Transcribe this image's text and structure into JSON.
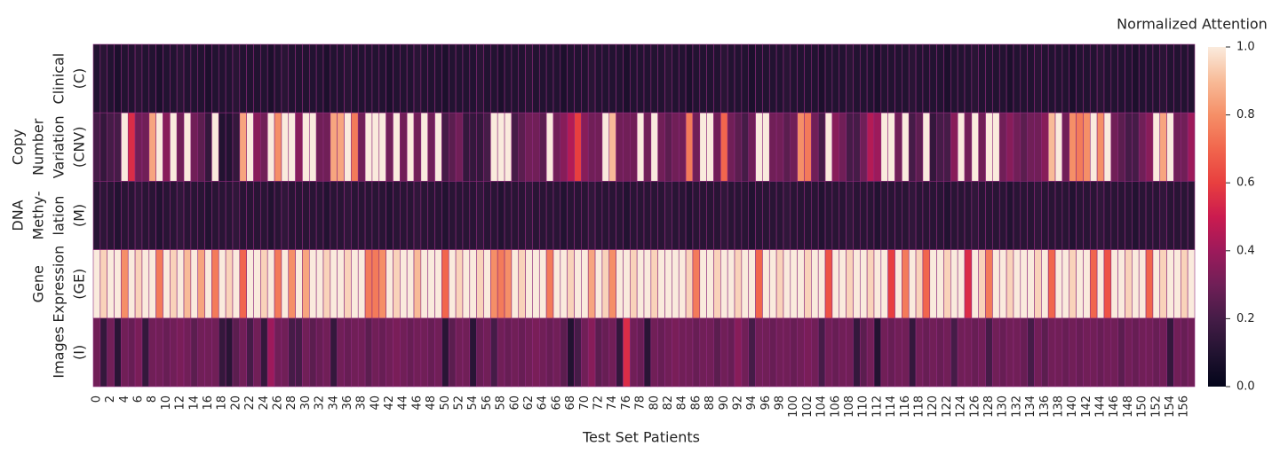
{
  "chart_data": {
    "type": "heatmap",
    "colorbar_label": "Normalized Attention",
    "x_label": "Test Set Patients",
    "colormap": "rocket",
    "linecolor": "#8e2a7c",
    "categories": [
      "0",
      null,
      "2",
      null,
      "4",
      null,
      "6",
      null,
      "8",
      null,
      "10",
      null,
      "12",
      null,
      "14",
      null,
      "16",
      null,
      "18",
      null,
      "20",
      null,
      "22",
      null,
      "24",
      null,
      "26",
      null,
      "28",
      null,
      "30",
      null,
      "32",
      null,
      "34",
      null,
      "36",
      null,
      "38",
      null,
      "40",
      null,
      "42",
      null,
      "44",
      null,
      "46",
      null,
      "48",
      null,
      "50",
      null,
      "52",
      null,
      "54",
      null,
      "56",
      null,
      "58",
      null,
      "60",
      null,
      "62",
      null,
      "64",
      null,
      "66",
      null,
      "68",
      null,
      "70",
      null,
      "72",
      null,
      "74",
      null,
      "76",
      null,
      "78",
      null,
      "80",
      null,
      "82",
      null,
      "84",
      null,
      "86",
      null,
      "88",
      null,
      "90",
      null,
      "92",
      null,
      "94",
      null,
      "96",
      null,
      "98",
      null,
      "100",
      null,
      "102",
      null,
      "104",
      null,
      "106",
      null,
      "108",
      null,
      "110",
      null,
      "112",
      null,
      "114",
      null,
      "116",
      null,
      "118",
      null,
      "120",
      null,
      "122",
      null,
      "124",
      null,
      "126",
      null,
      "128",
      null,
      "130",
      null,
      "132",
      null,
      "134",
      null,
      "136",
      null,
      "138",
      null,
      "140",
      null,
      "142",
      null,
      "144",
      null,
      "146",
      null,
      "148",
      null,
      "150",
      null,
      "152",
      null,
      "154",
      null,
      "156",
      null
    ],
    "y_categories": [
      [
        "Clinical",
        "(C)"
      ],
      [
        "Copy",
        "Number",
        "Variation",
        "(CNV)"
      ],
      [
        "DNA",
        "Methy-",
        "lation",
        "(M)"
      ],
      [
        "Gene",
        "Expression",
        "(GE)"
      ],
      [
        "Images",
        "(I)"
      ]
    ],
    "z": [
      [
        0.1,
        0.12,
        0.1,
        0.08,
        0.1,
        0.1,
        0.12,
        0.1,
        0.1,
        0.08,
        0.1,
        0.1,
        0.12,
        0.1,
        0.1,
        0.1,
        0.08,
        0.1,
        0.1,
        0.1,
        0.12,
        0.1,
        0.1,
        0.1,
        0.1,
        0.08,
        0.1,
        0.12,
        0.1,
        0.1,
        0.1,
        0.1,
        0.1,
        0.08,
        0.1,
        0.1,
        0.12,
        0.1,
        0.1,
        0.1,
        0.1,
        0.1,
        0.08,
        0.1,
        0.1,
        0.1,
        0.12,
        0.1,
        0.1,
        0.1,
        0.08,
        0.1,
        0.1,
        0.1,
        0.1,
        0.12,
        0.1,
        0.1,
        0.08,
        0.1,
        0.1,
        0.1,
        0.12,
        0.1,
        0.1,
        0.1,
        0.1,
        0.08,
        0.1,
        0.1,
        0.1,
        0.12,
        0.1,
        0.1,
        0.1,
        0.1,
        0.08,
        0.1,
        0.1,
        0.1,
        0.1,
        0.1,
        0.12,
        0.1,
        0.1,
        0.08,
        0.1,
        0.1,
        0.1,
        0.1,
        0.12,
        0.1,
        0.1,
        0.1,
        0.08,
        0.1,
        0.1,
        0.1,
        0.1,
        0.12,
        0.1,
        0.1,
        0.1,
        0.1,
        0.08,
        0.1,
        0.1,
        0.1,
        0.12,
        0.1,
        0.1,
        0.1,
        0.08,
        0.1,
        0.1,
        0.1,
        0.1,
        0.12,
        0.1,
        0.1,
        0.1,
        0.1,
        0.08,
        0.1,
        0.1,
        0.1,
        0.12,
        0.1,
        0.1,
        0.1,
        0.1,
        0.08,
        0.1,
        0.1,
        0.1,
        0.12,
        0.1,
        0.1,
        0.1,
        0.1,
        0.08,
        0.1,
        0.1,
        0.1,
        0.12,
        0.1,
        0.1,
        0.1,
        0.1,
        0.08,
        0.1,
        0.1,
        0.1,
        0.12,
        0.1,
        0.1,
        0.1,
        0.1
      ],
      [
        0.2,
        0.15,
        0.2,
        0.2,
        1.0,
        0.55,
        0.3,
        0.3,
        0.85,
        1.0,
        0.35,
        1.0,
        0.3,
        1.0,
        0.3,
        0.25,
        0.15,
        1.0,
        0.1,
        0.1,
        0.15,
        0.85,
        1.0,
        0.35,
        0.3,
        1.0,
        0.8,
        1.0,
        1.0,
        0.35,
        1.0,
        1.0,
        0.3,
        0.3,
        0.85,
        0.85,
        1.0,
        0.75,
        0.3,
        1.0,
        1.0,
        1.0,
        0.3,
        1.0,
        0.3,
        1.0,
        0.3,
        1.0,
        0.3,
        1.0,
        0.2,
        0.25,
        0.3,
        0.15,
        0.15,
        0.15,
        0.2,
        1.0,
        1.0,
        1.0,
        0.2,
        0.25,
        0.3,
        0.3,
        0.25,
        1.0,
        0.3,
        0.35,
        0.45,
        0.6,
        0.35,
        0.3,
        0.3,
        1.0,
        0.9,
        0.3,
        0.3,
        0.3,
        1.0,
        0.3,
        1.0,
        0.3,
        0.25,
        0.3,
        0.3,
        0.75,
        0.3,
        1.0,
        1.0,
        0.3,
        0.7,
        0.3,
        0.25,
        0.2,
        0.3,
        1.0,
        1.0,
        0.3,
        0.3,
        0.25,
        0.3,
        0.8,
        0.75,
        0.3,
        0.2,
        1.0,
        0.35,
        0.3,
        0.2,
        0.2,
        0.3,
        0.45,
        0.4,
        1.0,
        1.0,
        0.3,
        1.0,
        0.2,
        0.25,
        1.0,
        0.15,
        0.2,
        0.2,
        0.35,
        1.0,
        0.3,
        1.0,
        0.3,
        1.0,
        1.0,
        0.3,
        0.35,
        0.3,
        0.25,
        0.3,
        0.3,
        0.35,
        0.9,
        1.0,
        0.3,
        0.8,
        0.75,
        0.8,
        1.0,
        0.8,
        1.0,
        0.3,
        0.25,
        0.2,
        0.2,
        0.3,
        0.35,
        1.0,
        0.85,
        1.0,
        0.3,
        0.3,
        0.4
      ],
      [
        0.12,
        0.13,
        0.12,
        0.1,
        0.12,
        0.12,
        0.14,
        0.12,
        0.12,
        0.1,
        0.12,
        0.12,
        0.14,
        0.12,
        0.12,
        0.12,
        0.1,
        0.12,
        0.12,
        0.12,
        0.14,
        0.12,
        0.12,
        0.12,
        0.12,
        0.1,
        0.12,
        0.14,
        0.12,
        0.12,
        0.12,
        0.12,
        0.12,
        0.1,
        0.12,
        0.12,
        0.14,
        0.12,
        0.12,
        0.12,
        0.12,
        0.12,
        0.1,
        0.12,
        0.12,
        0.12,
        0.14,
        0.12,
        0.12,
        0.12,
        0.1,
        0.12,
        0.12,
        0.12,
        0.12,
        0.14,
        0.12,
        0.12,
        0.1,
        0.12,
        0.12,
        0.12,
        0.14,
        0.12,
        0.12,
        0.12,
        0.12,
        0.1,
        0.12,
        0.12,
        0.12,
        0.14,
        0.12,
        0.12,
        0.12,
        0.12,
        0.1,
        0.12,
        0.12,
        0.12,
        0.12,
        0.12,
        0.14,
        0.12,
        0.12,
        0.1,
        0.12,
        0.12,
        0.12,
        0.12,
        0.14,
        0.12,
        0.12,
        0.12,
        0.1,
        0.12,
        0.12,
        0.12,
        0.12,
        0.14,
        0.12,
        0.12,
        0.12,
        0.12,
        0.1,
        0.12,
        0.12,
        0.12,
        0.14,
        0.12,
        0.12,
        0.12,
        0.1,
        0.12,
        0.12,
        0.12,
        0.12,
        0.14,
        0.12,
        0.12,
        0.12,
        0.12,
        0.1,
        0.12,
        0.12,
        0.12,
        0.14,
        0.12,
        0.12,
        0.12,
        0.12,
        0.1,
        0.12,
        0.12,
        0.12,
        0.14,
        0.12,
        0.12,
        0.12,
        0.12,
        0.1,
        0.12,
        0.12,
        0.12,
        0.14,
        0.12,
        0.12,
        0.12,
        0.12,
        0.1,
        0.12,
        0.12,
        0.12,
        0.14,
        0.12,
        0.12,
        0.12,
        0.12
      ],
      [
        1.0,
        0.95,
        1.0,
        1.0,
        0.8,
        1.0,
        0.95,
        1.0,
        1.0,
        0.75,
        1.0,
        0.95,
        1.0,
        0.9,
        1.0,
        0.85,
        1.0,
        0.75,
        1.0,
        0.95,
        1.0,
        0.7,
        1.0,
        1.0,
        0.95,
        1.0,
        0.75,
        1.0,
        0.8,
        1.0,
        0.85,
        1.0,
        1.0,
        0.95,
        1.0,
        1.0,
        0.95,
        1.0,
        1.0,
        0.75,
        0.75,
        0.8,
        1.0,
        0.95,
        1.0,
        1.0,
        0.9,
        1.0,
        1.0,
        1.0,
        0.7,
        1.0,
        0.95,
        1.0,
        1.0,
        0.95,
        1.0,
        0.8,
        0.75,
        0.8,
        1.0,
        0.95,
        1.0,
        1.0,
        1.0,
        0.75,
        1.0,
        1.0,
        0.95,
        1.0,
        1.0,
        0.85,
        1.0,
        0.95,
        0.8,
        1.0,
        1.0,
        0.95,
        1.0,
        1.0,
        0.95,
        1.0,
        1.0,
        1.0,
        1.0,
        0.95,
        0.75,
        1.0,
        1.0,
        0.95,
        1.0,
        1.0,
        0.95,
        1.0,
        1.0,
        0.7,
        1.0,
        1.0,
        0.95,
        1.0,
        1.0,
        1.0,
        0.95,
        1.0,
        1.0,
        0.65,
        1.0,
        1.0,
        0.95,
        1.0,
        1.0,
        0.95,
        1.0,
        1.0,
        0.6,
        1.0,
        0.75,
        1.0,
        0.95,
        0.7,
        1.0,
        1.0,
        0.95,
        1.0,
        1.0,
        0.55,
        1.0,
        0.95,
        0.75,
        1.0,
        1.0,
        0.95,
        1.0,
        1.0,
        1.0,
        0.95,
        1.0,
        0.7,
        1.0,
        1.0,
        0.95,
        1.0,
        1.0,
        0.7,
        1.0,
        0.65,
        1.0,
        1.0,
        0.95,
        1.0,
        1.0,
        0.7,
        1.0,
        0.95,
        1.0,
        1.0,
        0.95,
        1.0
      ],
      [
        0.3,
        0.15,
        0.3,
        0.12,
        0.3,
        0.28,
        0.32,
        0.15,
        0.3,
        0.3,
        0.28,
        0.3,
        0.32,
        0.3,
        0.25,
        0.3,
        0.3,
        0.3,
        0.15,
        0.12,
        0.25,
        0.3,
        0.2,
        0.3,
        0.15,
        0.4,
        0.3,
        0.3,
        0.2,
        0.2,
        0.3,
        0.25,
        0.28,
        0.3,
        0.15,
        0.3,
        0.28,
        0.3,
        0.3,
        0.25,
        0.3,
        0.28,
        0.3,
        0.32,
        0.3,
        0.28,
        0.3,
        0.3,
        0.28,
        0.3,
        0.12,
        0.25,
        0.3,
        0.3,
        0.12,
        0.28,
        0.3,
        0.2,
        0.3,
        0.28,
        0.3,
        0.28,
        0.3,
        0.32,
        0.3,
        0.28,
        0.3,
        0.25,
        0.1,
        0.2,
        0.3,
        0.35,
        0.25,
        0.28,
        0.3,
        0.15,
        0.55,
        0.3,
        0.28,
        0.12,
        0.3,
        0.28,
        0.3,
        0.32,
        0.3,
        0.3,
        0.28,
        0.3,
        0.3,
        0.25,
        0.3,
        0.28,
        0.35,
        0.3,
        0.2,
        0.3,
        0.3,
        0.28,
        0.3,
        0.3,
        0.28,
        0.3,
        0.32,
        0.3,
        0.2,
        0.3,
        0.28,
        0.3,
        0.3,
        0.15,
        0.25,
        0.3,
        0.1,
        0.3,
        0.28,
        0.3,
        0.3,
        0.15,
        0.3,
        0.28,
        0.3,
        0.28,
        0.3,
        0.2,
        0.3,
        0.3,
        0.28,
        0.3,
        0.2,
        0.3,
        0.28,
        0.3,
        0.3,
        0.28,
        0.2,
        0.3,
        0.25,
        0.3,
        0.3,
        0.28,
        0.3,
        0.28,
        0.3,
        0.3,
        0.28,
        0.3,
        0.3,
        0.25,
        0.3,
        0.28,
        0.3,
        0.3,
        0.28,
        0.3,
        0.15,
        0.3,
        0.28,
        0.3
      ]
    ],
    "clim": [
      0,
      1
    ],
    "cticks": [
      {
        "value": 0,
        "label": "0.0"
      },
      {
        "value": 0.2,
        "label": "0.2"
      },
      {
        "value": 0.4,
        "label": "0.4"
      },
      {
        "value": 0.6,
        "label": "0.6"
      },
      {
        "value": 0.8,
        "label": "0.8"
      },
      {
        "value": 1,
        "label": "1.0"
      }
    ]
  }
}
